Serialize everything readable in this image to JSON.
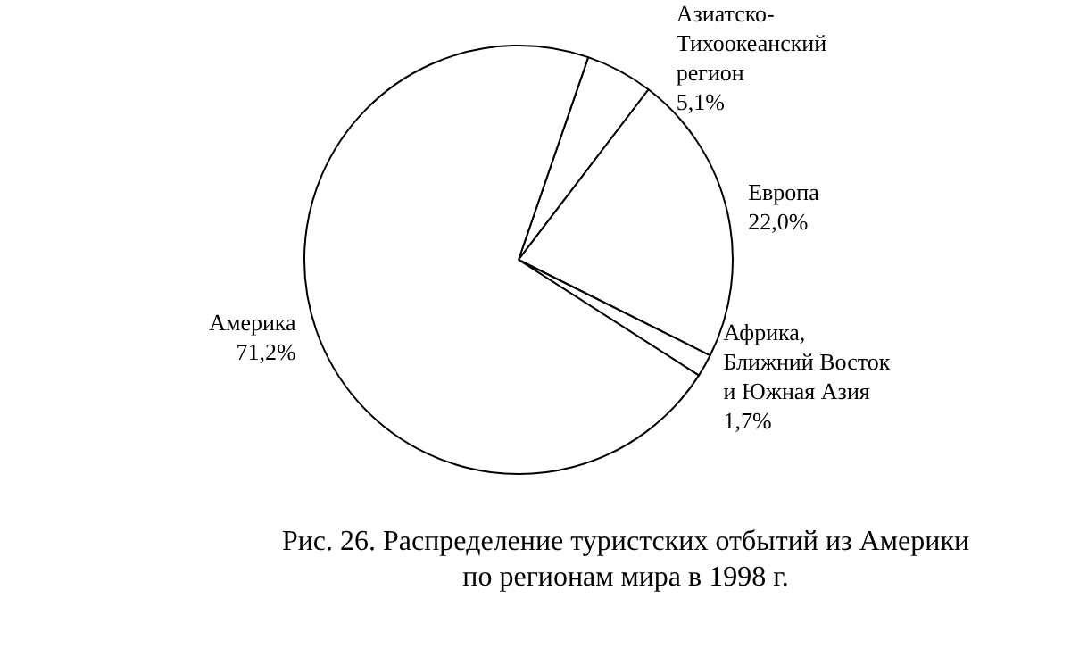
{
  "chart_data": {
    "type": "pie",
    "title": "Рис. 26. Распределение туристских отбытий из Америки по регионам мира в 1998 г.",
    "categories": [
      "Азиатско-Тихоокеанский регион",
      "Европа",
      "Африка, Ближний Восток и Южная Азия",
      "Америка"
    ],
    "values": [
      5.1,
      22.0,
      1.7,
      71.2
    ],
    "value_labels": [
      "5,1%",
      "22,0%",
      "1,7%",
      "71,2%"
    ],
    "colors": [
      "#ffffff",
      "#ffffff",
      "#ffffff",
      "#ffffff"
    ]
  }
}
